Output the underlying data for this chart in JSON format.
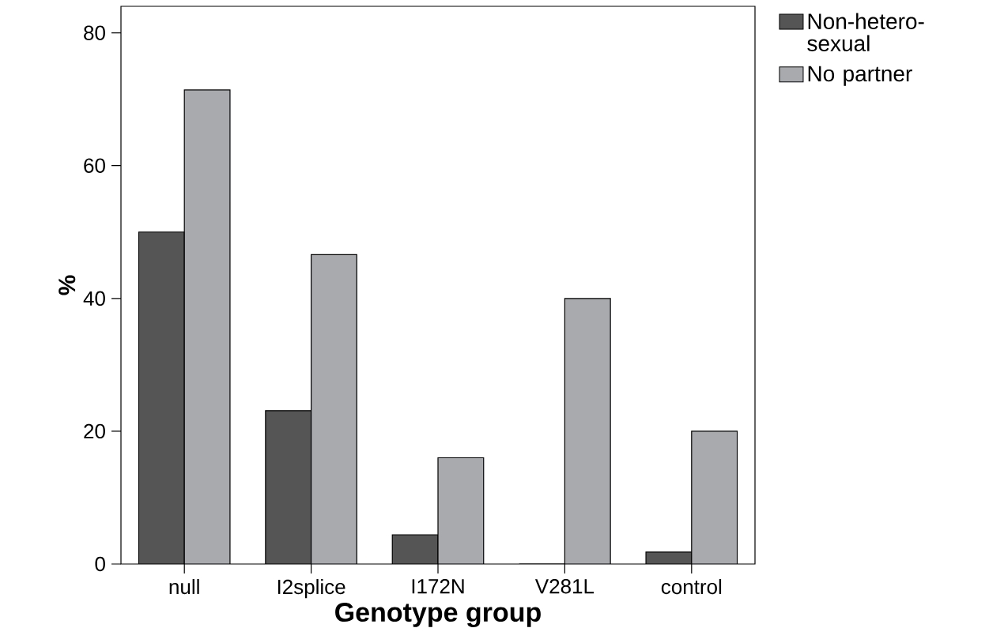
{
  "chart_data": {
    "type": "bar",
    "xlabel": "Genotype group",
    "ylabel": "%",
    "categories": [
      "null",
      "I2splice",
      "I172N",
      "V281L",
      "control"
    ],
    "series": [
      {
        "name": "Non-hetero-sexual",
        "color": "#555555",
        "values": [
          50,
          23.1,
          4.4,
          0,
          1.8
        ]
      },
      {
        "name": "No partner",
        "color": "#a9aaad",
        "values": [
          71.4,
          46.6,
          16,
          40,
          20
        ]
      }
    ],
    "ylim": [
      0,
      84
    ],
    "yticks": [
      0,
      20,
      40,
      60,
      80
    ],
    "grid": false,
    "legend": "top right"
  }
}
